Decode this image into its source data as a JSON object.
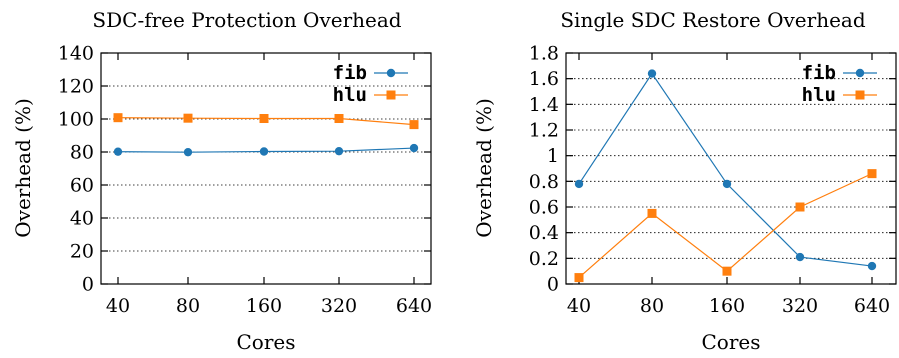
{
  "colors": {
    "fib": "#1f77b4",
    "hlu": "#ff7f0e"
  },
  "chart_data": [
    {
      "type": "line",
      "title": "SDC-free Protection Overhead",
      "xlabel": "Cores",
      "ylabel": "Overhead (%)",
      "categories": [
        "40",
        "80",
        "160",
        "320",
        "640"
      ],
      "ylim": [
        0,
        140
      ],
      "yticks": [
        0,
        20,
        40,
        60,
        80,
        100,
        120,
        140
      ],
      "ytick_labels": [
        "0",
        "20",
        "40",
        "60",
        "80",
        "100",
        "120",
        "140"
      ],
      "grid": true,
      "legend": "top-right",
      "series": [
        {
          "name": "fib",
          "marker": "circle",
          "values": [
            80.2,
            79.9,
            80.3,
            80.5,
            82.4
          ]
        },
        {
          "name": "hlu",
          "marker": "square",
          "values": [
            100.8,
            100.5,
            100.3,
            100.3,
            96.6
          ]
        }
      ]
    },
    {
      "type": "line",
      "title": "Single SDC Restore Overhead",
      "xlabel": "Cores",
      "ylabel": "Overhead (%)",
      "categories": [
        "40",
        "80",
        "160",
        "320",
        "640"
      ],
      "ylim": [
        0,
        1.8
      ],
      "yticks": [
        0,
        0.2,
        0.4,
        0.6,
        0.8,
        1.0,
        1.2,
        1.4,
        1.6,
        1.8
      ],
      "ytick_labels": [
        "0",
        "0.2",
        "0.4",
        "0.6",
        "0.8",
        "1",
        "1.2",
        "1.4",
        "1.6",
        "1.8"
      ],
      "grid": true,
      "legend": "top-right",
      "series": [
        {
          "name": "fib",
          "marker": "circle",
          "values": [
            0.78,
            1.64,
            0.78,
            0.21,
            0.14
          ]
        },
        {
          "name": "hlu",
          "marker": "square",
          "values": [
            0.05,
            0.55,
            0.1,
            0.6,
            0.86
          ]
        }
      ]
    }
  ]
}
